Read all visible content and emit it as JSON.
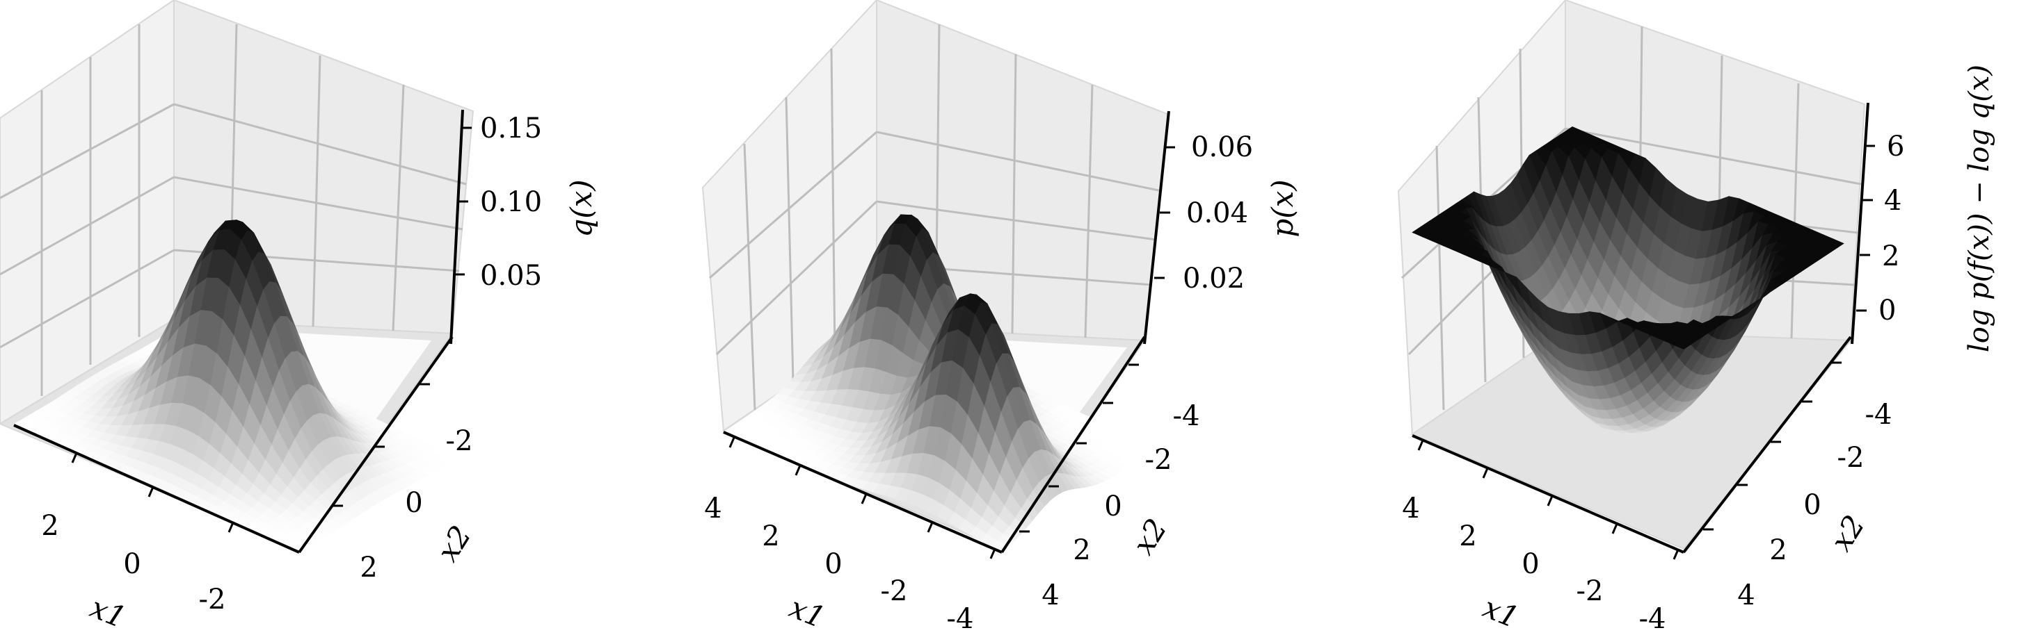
{
  "chart_data": [
    {
      "type": "surface3d",
      "function": "gaussian",
      "xlabel": "x1",
      "ylabel": "x2",
      "zlabel": "q(x)",
      "xlim": [
        -3,
        3
      ],
      "ylim": [
        -3,
        3
      ],
      "zlim": [
        0,
        0.16
      ],
      "xticks": [
        2,
        0,
        -2
      ],
      "yticks": [
        -2,
        0,
        2
      ],
      "zticks": [
        "0.05",
        "0.10",
        "0.15"
      ],
      "colormap": "Greys"
    },
    {
      "type": "surface3d",
      "function": "bimodal",
      "xlabel": "x1",
      "ylabel": "x2",
      "zlabel": "p(x)",
      "xlim": [
        -4,
        4
      ],
      "ylim": [
        -4,
        4
      ],
      "zlim": [
        0,
        0.065
      ],
      "xticks": [
        4,
        2,
        0,
        -2,
        -4
      ],
      "yticks": [
        -4,
        -2,
        0,
        2,
        4
      ],
      "zticks": [
        "0.02",
        "0.04",
        "0.06"
      ],
      "colormap": "Greys"
    },
    {
      "type": "surface3d",
      "function": "log_ratio",
      "xlabel": "x1",
      "ylabel": "x2",
      "zlabel": "log p(f(x)) − log q(x)",
      "xlim": [
        -4,
        4
      ],
      "ylim": [
        -4,
        4
      ],
      "zlim": [
        -1,
        7
      ],
      "xticks": [
        4,
        2,
        0,
        -2,
        -4
      ],
      "yticks": [
        -4,
        -2,
        0,
        2,
        4
      ],
      "zticks": [
        "0",
        "2",
        "4",
        "6"
      ],
      "colormap": "Greys"
    }
  ]
}
